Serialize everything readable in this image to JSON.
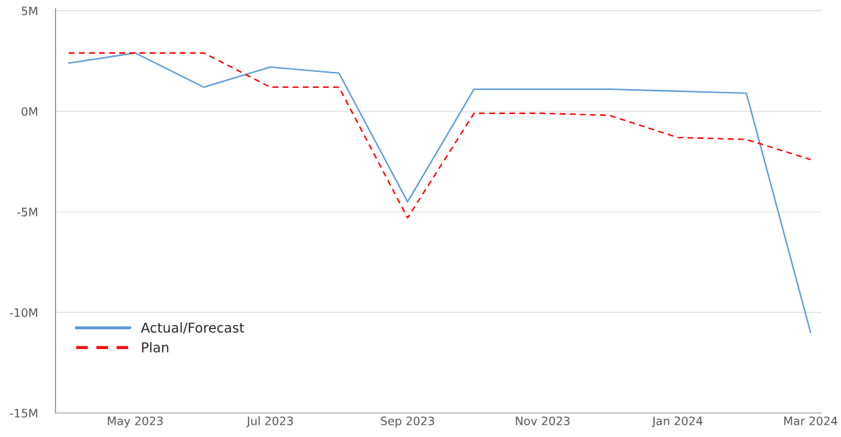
{
  "chart_data": {
    "type": "line",
    "x": [
      "2023-04",
      "2023-05",
      "2023-06",
      "2023-07",
      "2023-08",
      "2023-09",
      "2023-10",
      "2023-11",
      "2023-12",
      "2024-01",
      "2024-02",
      "2024-03"
    ],
    "series": [
      {
        "name": "Actual/Forecast",
        "color": "#5b9bd5",
        "line_style": "solid",
        "values": [
          2.4,
          2.9,
          1.2,
          2.2,
          1.9,
          -4.5,
          1.1,
          1.1,
          1.1,
          1.0,
          0.9,
          -11.0
        ]
      },
      {
        "name": "Plan",
        "color": "#ff0000",
        "line_style": "dashed",
        "values": [
          2.9,
          2.9,
          2.9,
          1.2,
          1.2,
          -5.3,
          -0.1,
          -0.1,
          -0.2,
          -1.3,
          -1.4,
          -2.4
        ]
      }
    ],
    "xlim": [
      "2023-03-26",
      "2024-03-06"
    ],
    "xticks": [
      {
        "value": "2023-05",
        "label": "May 2023"
      },
      {
        "value": "2023-07",
        "label": "Jul 2023"
      },
      {
        "value": "2023-09",
        "label": "Sep 2023"
      },
      {
        "value": "2023-11",
        "label": "Nov 2023"
      },
      {
        "value": "2024-01",
        "label": "Jan 2024"
      },
      {
        "value": "2024-03",
        "label": "Mar 2024"
      }
    ],
    "ylim": [
      -15,
      5.1
    ],
    "yticks": [
      {
        "value": 5,
        "label": "5M"
      },
      {
        "value": 0,
        "label": "0M"
      },
      {
        "value": -5,
        "label": "-5M"
      },
      {
        "value": -10,
        "label": "-10M"
      },
      {
        "value": -15,
        "label": "-15M"
      }
    ],
    "grid": "y",
    "legend": "bottom left",
    "marker": "none"
  }
}
